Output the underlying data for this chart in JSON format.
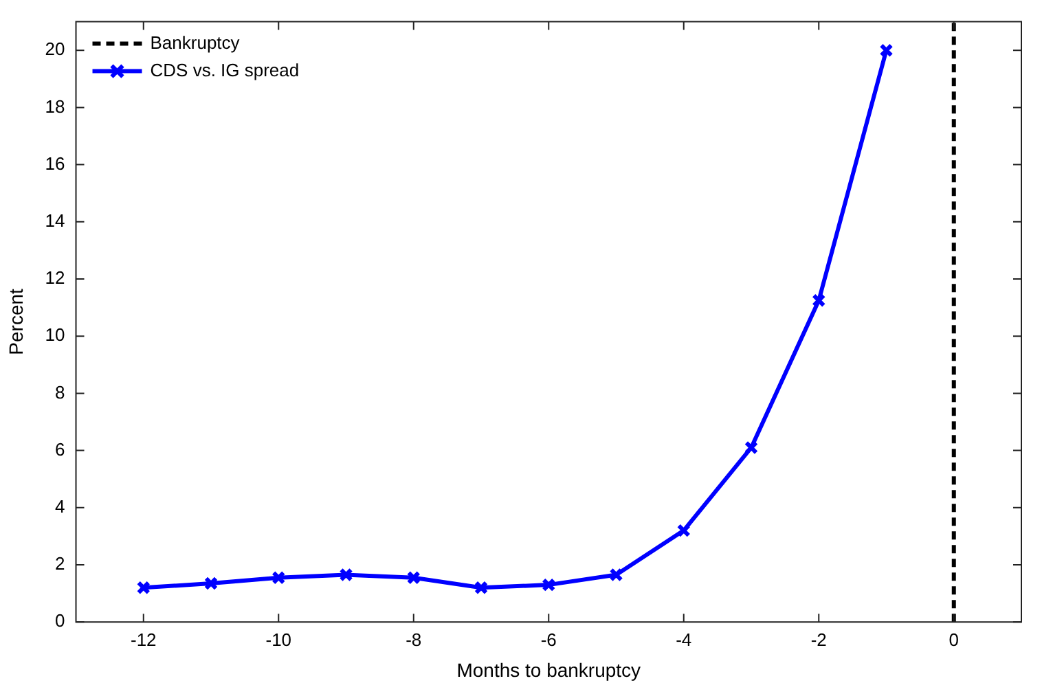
{
  "chart_data": {
    "type": "line",
    "xlabel": "Months to bankruptcy",
    "ylabel": "Percent",
    "x": [
      -12,
      -11,
      -10,
      -9,
      -8,
      -7,
      -6,
      -5,
      -4,
      -3,
      -2,
      -1
    ],
    "series": [
      {
        "name": "CDS vs. IG spread",
        "color": "#0000ff",
        "values": [
          1.2,
          1.35,
          1.55,
          1.65,
          1.55,
          1.2,
          1.3,
          1.65,
          3.2,
          6.1,
          11.25,
          20
        ]
      }
    ],
    "xlim": [
      -13,
      1
    ],
    "xticks": [
      -12,
      -10,
      -8,
      -6,
      -4,
      -2,
      0
    ],
    "ylim": [
      0,
      21
    ],
    "yticks": [
      0,
      2,
      4,
      6,
      8,
      10,
      12,
      14,
      16,
      18,
      20
    ],
    "ref_lines": [
      {
        "axis": "x",
        "value": 0,
        "label": "Bankruptcy",
        "color": "#000000",
        "line_style": "dashed"
      }
    ],
    "grid": false,
    "legend": "top left",
    "marker": "cross",
    "line_style": "solid"
  }
}
